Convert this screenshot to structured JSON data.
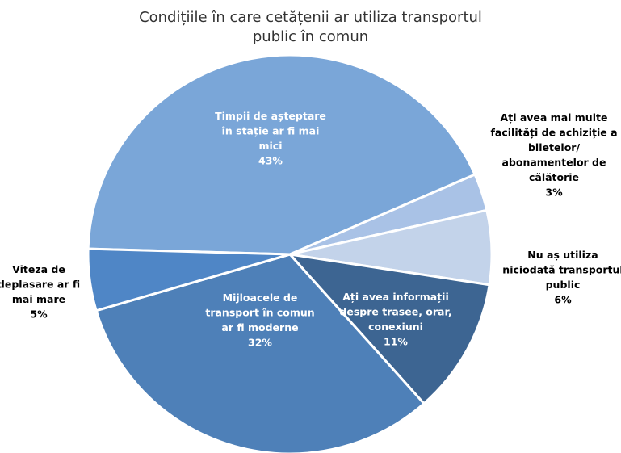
{
  "chart_data": {
    "type": "pie",
    "title": "Condițiile în care cetățenii ar utiliza transportul public în comun",
    "title_lines": [
      "Condițiile în care cetățenii ar utiliza transportul",
      "public în comun"
    ],
    "slices": [
      {
        "label_lines": [
          "Timpii de așteptare",
          "în stație ar fi mai",
          "mici"
        ],
        "value": 43,
        "value_label": "43%",
        "color": "#7aa6d8",
        "label_color": "#ffffff",
        "label_position": "inside"
      },
      {
        "label_lines": [
          "Ați avea mai multe",
          "facilități de achiziție a",
          "biletelor/",
          "abonamentelor de",
          "călătorie"
        ],
        "value": 3,
        "value_label": "3%",
        "color": "#a9c2e6",
        "label_color": "#000000",
        "label_position": "outside"
      },
      {
        "label_lines": [
          "Nu aș utiliza",
          "niciodată transportul",
          "public"
        ],
        "value": 6,
        "value_label": "6%",
        "color": "#c3d3ea",
        "label_color": "#000000",
        "label_position": "outside"
      },
      {
        "label_lines": [
          "Ați avea informații",
          "despre trasee, orar,",
          "conexiuni"
        ],
        "value": 11,
        "value_label": "11%",
        "color": "#3d6592",
        "label_color": "#ffffff",
        "label_position": "inside"
      },
      {
        "label_lines": [
          "Mijloacele de",
          "transport în comun",
          "ar fi moderne"
        ],
        "value": 32,
        "value_label": "32%",
        "color": "#4e80b8",
        "label_color": "#ffffff",
        "label_position": "inside"
      },
      {
        "label_lines": [
          "Viteza de",
          "deplasare ar fi",
          "mai mare"
        ],
        "value": 5,
        "value_label": "5%",
        "color": "#4f86c6",
        "label_color": "#000000",
        "label_position": "outside"
      }
    ],
    "legend": "none"
  }
}
